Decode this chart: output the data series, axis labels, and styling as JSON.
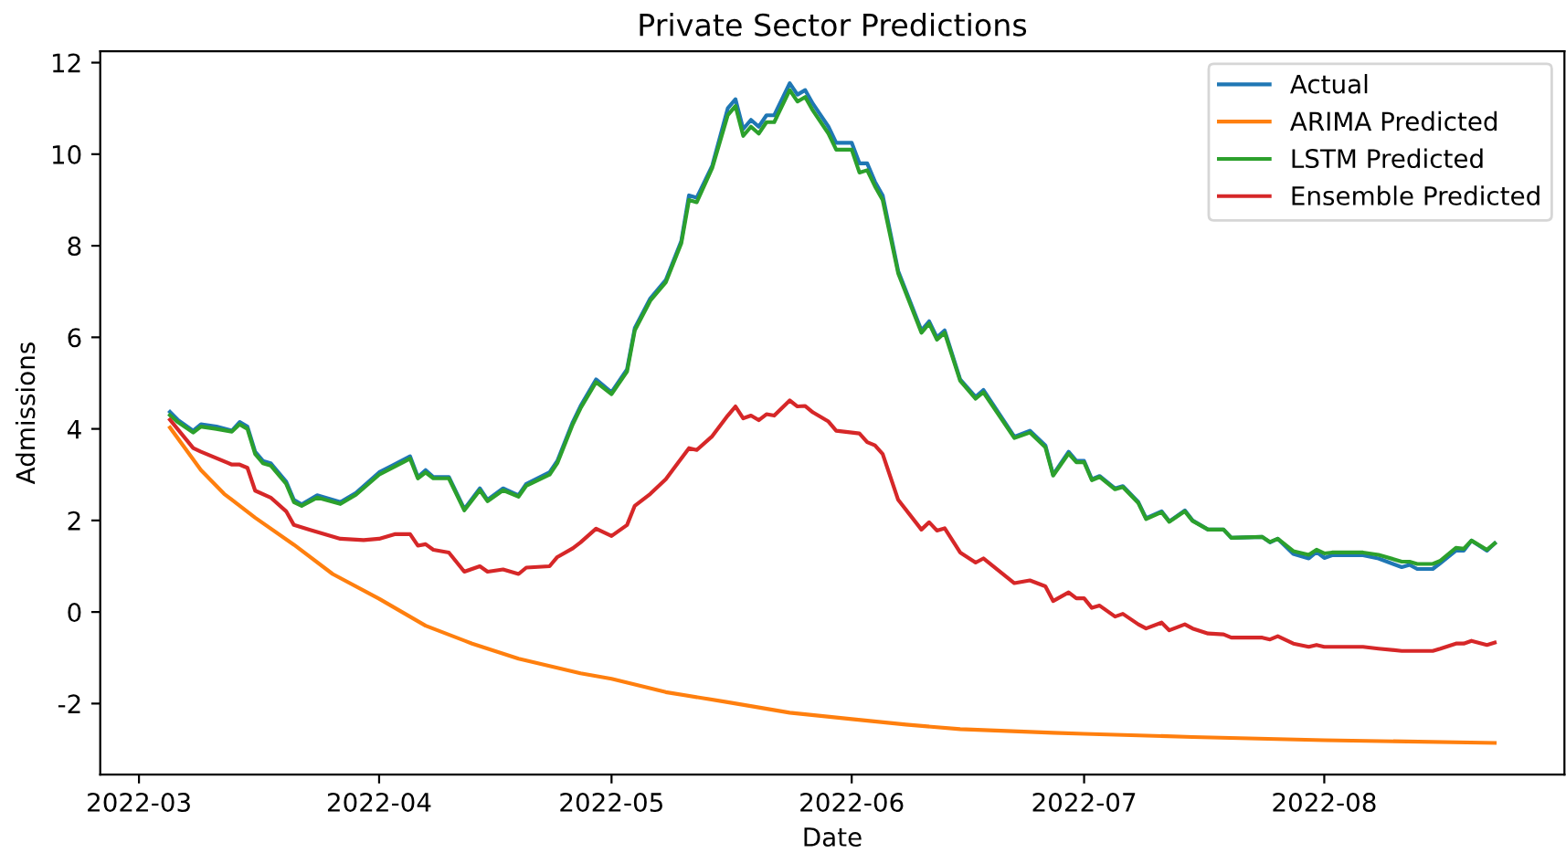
{
  "chart_data": {
    "type": "line",
    "title": "Private Sector Predictions",
    "xlabel": "Date",
    "ylabel": "Admissions",
    "xlim": [
      "2022-02-24",
      "2022-09-01"
    ],
    "ylim": [
      -3.55,
      12.25
    ],
    "xticks": [
      {
        "value": "2022-03-01",
        "label": "2022-03"
      },
      {
        "value": "2022-04-01",
        "label": "2022-04"
      },
      {
        "value": "2022-05-01",
        "label": "2022-05"
      },
      {
        "value": "2022-06-01",
        "label": "2022-06"
      },
      {
        "value": "2022-07-01",
        "label": "2022-07"
      },
      {
        "value": "2022-08-01",
        "label": "2022-08"
      }
    ],
    "yticks": [
      -2,
      0,
      2,
      4,
      6,
      8,
      10,
      12
    ],
    "grid": false,
    "legend": "top right",
    "marker": "none",
    "line_style": "solid",
    "series": [
      {
        "name": "Actual",
        "color": "#1f77b4",
        "x": [
          "2022-03-05",
          "2022-03-06",
          "2022-03-08",
          "2022-03-09",
          "2022-03-11",
          "2022-03-13",
          "2022-03-14",
          "2022-03-15",
          "2022-03-16",
          "2022-03-17",
          "2022-03-18",
          "2022-03-20",
          "2022-03-21",
          "2022-03-22",
          "2022-03-24",
          "2022-03-27",
          "2022-03-29",
          "2022-04-01",
          "2022-04-05",
          "2022-04-06",
          "2022-04-07",
          "2022-04-08",
          "2022-04-10",
          "2022-04-12",
          "2022-04-14",
          "2022-04-15",
          "2022-04-17",
          "2022-04-19",
          "2022-04-20",
          "2022-04-23",
          "2022-04-24",
          "2022-04-26",
          "2022-04-27",
          "2022-04-29",
          "2022-05-01",
          "2022-05-03",
          "2022-05-04",
          "2022-05-06",
          "2022-05-08",
          "2022-05-10",
          "2022-05-11",
          "2022-05-12",
          "2022-05-14",
          "2022-05-16",
          "2022-05-17",
          "2022-05-18",
          "2022-05-19",
          "2022-05-20",
          "2022-05-21",
          "2022-05-22",
          "2022-05-24",
          "2022-05-25",
          "2022-05-26",
          "2022-05-27",
          "2022-05-29",
          "2022-05-30",
          "2022-06-01",
          "2022-06-02",
          "2022-06-03",
          "2022-06-04",
          "2022-06-05",
          "2022-06-07",
          "2022-06-10",
          "2022-06-11",
          "2022-06-12",
          "2022-06-13",
          "2022-06-15",
          "2022-06-17",
          "2022-06-18",
          "2022-06-22",
          "2022-06-24",
          "2022-06-26",
          "2022-06-27",
          "2022-06-29",
          "2022-06-30",
          "2022-07-01",
          "2022-07-02",
          "2022-07-03",
          "2022-07-05",
          "2022-07-06",
          "2022-07-08",
          "2022-07-09",
          "2022-07-11",
          "2022-07-12",
          "2022-07-14",
          "2022-07-15",
          "2022-07-17",
          "2022-07-19",
          "2022-07-20",
          "2022-07-24",
          "2022-07-25",
          "2022-07-26",
          "2022-07-28",
          "2022-07-30",
          "2022-07-31",
          "2022-08-01",
          "2022-08-02",
          "2022-08-06",
          "2022-08-08",
          "2022-08-11",
          "2022-08-12",
          "2022-08-13",
          "2022-08-15",
          "2022-08-16",
          "2022-08-18",
          "2022-08-19",
          "2022-08-20",
          "2022-08-22",
          "2022-08-23"
        ],
        "values": [
          4.37,
          4.2,
          3.96,
          4.1,
          4.05,
          3.96,
          4.15,
          4.05,
          3.5,
          3.3,
          3.25,
          2.85,
          2.45,
          2.35,
          2.55,
          2.4,
          2.6,
          3.05,
          3.4,
          2.95,
          3.1,
          2.95,
          2.95,
          2.25,
          2.7,
          2.45,
          2.7,
          2.55,
          2.8,
          3.05,
          3.3,
          4.15,
          4.5,
          5.08,
          4.8,
          5.3,
          6.2,
          6.85,
          7.25,
          8.1,
          9.1,
          9.05,
          9.75,
          11.0,
          11.2,
          10.55,
          10.75,
          10.6,
          10.85,
          10.85,
          11.55,
          11.3,
          11.4,
          11.1,
          10.6,
          10.25,
          10.25,
          9.8,
          9.8,
          9.4,
          9.1,
          7.45,
          6.15,
          6.35,
          6.0,
          6.15,
          5.08,
          4.7,
          4.85,
          3.83,
          3.96,
          3.64,
          3.0,
          3.5,
          3.3,
          3.3,
          2.9,
          2.97,
          2.7,
          2.75,
          2.4,
          2.05,
          2.2,
          1.98,
          2.22,
          2.0,
          1.8,
          1.8,
          1.62,
          1.64,
          1.52,
          1.6,
          1.27,
          1.17,
          1.31,
          1.18,
          1.24,
          1.24,
          1.17,
          0.98,
          1.03,
          0.94,
          0.94,
          1.07,
          1.34,
          1.34,
          1.56,
          1.34,
          1.5
        ]
      },
      {
        "name": "ARIMA Predicted",
        "color": "#ff7f0e",
        "x": [
          "2022-03-05",
          "2022-03-09",
          "2022-03-12",
          "2022-03-16",
          "2022-03-21",
          "2022-03-26",
          "2022-04-01",
          "2022-04-07",
          "2022-04-13",
          "2022-04-19",
          "2022-04-27",
          "2022-05-01",
          "2022-05-08",
          "2022-05-16",
          "2022-05-24",
          "2022-06-01",
          "2022-06-08",
          "2022-06-15",
          "2022-06-27",
          "2022-07-01",
          "2022-07-15",
          "2022-08-01",
          "2022-08-23"
        ],
        "values": [
          4.03,
          3.1,
          2.58,
          2.06,
          1.47,
          0.83,
          0.29,
          -0.3,
          -0.69,
          -1.02,
          -1.34,
          -1.46,
          -1.75,
          -1.97,
          -2.2,
          -2.34,
          -2.46,
          -2.56,
          -2.64,
          -2.66,
          -2.73,
          -2.8,
          -2.86
        ]
      },
      {
        "name": "LSTM Predicted",
        "color": "#2ca02c",
        "x": [
          "2022-03-05",
          "2022-03-06",
          "2022-03-08",
          "2022-03-09",
          "2022-03-11",
          "2022-03-13",
          "2022-03-14",
          "2022-03-15",
          "2022-03-16",
          "2022-03-17",
          "2022-03-18",
          "2022-03-20",
          "2022-03-21",
          "2022-03-22",
          "2022-03-24",
          "2022-03-27",
          "2022-03-29",
          "2022-04-01",
          "2022-04-05",
          "2022-04-06",
          "2022-04-07",
          "2022-04-08",
          "2022-04-10",
          "2022-04-12",
          "2022-04-14",
          "2022-04-15",
          "2022-04-17",
          "2022-04-19",
          "2022-04-20",
          "2022-04-23",
          "2022-04-24",
          "2022-04-26",
          "2022-04-27",
          "2022-04-29",
          "2022-05-01",
          "2022-05-03",
          "2022-05-04",
          "2022-05-06",
          "2022-05-08",
          "2022-05-10",
          "2022-05-11",
          "2022-05-12",
          "2022-05-14",
          "2022-05-16",
          "2022-05-17",
          "2022-05-18",
          "2022-05-19",
          "2022-05-20",
          "2022-05-21",
          "2022-05-22",
          "2022-05-24",
          "2022-05-25",
          "2022-05-26",
          "2022-05-27",
          "2022-05-29",
          "2022-05-30",
          "2022-06-01",
          "2022-06-02",
          "2022-06-03",
          "2022-06-04",
          "2022-06-05",
          "2022-06-07",
          "2022-06-10",
          "2022-06-11",
          "2022-06-12",
          "2022-06-13",
          "2022-06-15",
          "2022-06-17",
          "2022-06-18",
          "2022-06-22",
          "2022-06-24",
          "2022-06-26",
          "2022-06-27",
          "2022-06-29",
          "2022-06-30",
          "2022-07-01",
          "2022-07-02",
          "2022-07-03",
          "2022-07-05",
          "2022-07-06",
          "2022-07-08",
          "2022-07-09",
          "2022-07-11",
          "2022-07-12",
          "2022-07-14",
          "2022-07-15",
          "2022-07-17",
          "2022-07-19",
          "2022-07-20",
          "2022-07-24",
          "2022-07-25",
          "2022-07-26",
          "2022-07-28",
          "2022-07-30",
          "2022-07-31",
          "2022-08-01",
          "2022-08-02",
          "2022-08-06",
          "2022-08-08",
          "2022-08-11",
          "2022-08-12",
          "2022-08-13",
          "2022-08-15",
          "2022-08-16",
          "2022-08-18",
          "2022-08-19",
          "2022-08-20",
          "2022-08-22",
          "2022-08-23"
        ],
        "values": [
          4.3,
          4.15,
          3.92,
          4.05,
          4.0,
          3.94,
          4.1,
          4.0,
          3.45,
          3.25,
          3.2,
          2.8,
          2.4,
          2.32,
          2.5,
          2.36,
          2.56,
          3.0,
          3.35,
          2.92,
          3.05,
          2.92,
          2.92,
          2.22,
          2.66,
          2.42,
          2.66,
          2.52,
          2.76,
          3.0,
          3.25,
          4.1,
          4.45,
          5.02,
          4.76,
          5.25,
          6.15,
          6.8,
          7.2,
          8.05,
          9.0,
          8.95,
          9.7,
          10.85,
          11.05,
          10.4,
          10.6,
          10.45,
          10.7,
          10.7,
          11.4,
          11.15,
          11.25,
          10.95,
          10.45,
          10.1,
          10.1,
          9.6,
          9.65,
          9.3,
          9.0,
          7.4,
          6.1,
          6.3,
          5.95,
          6.1,
          5.05,
          4.66,
          4.8,
          3.8,
          3.92,
          3.6,
          2.98,
          3.46,
          3.27,
          3.27,
          2.88,
          2.95,
          2.68,
          2.73,
          2.38,
          2.03,
          2.18,
          1.97,
          2.2,
          1.99,
          1.8,
          1.8,
          1.62,
          1.64,
          1.53,
          1.6,
          1.33,
          1.25,
          1.36,
          1.28,
          1.3,
          1.3,
          1.25,
          1.1,
          1.1,
          1.05,
          1.05,
          1.12,
          1.4,
          1.38,
          1.56,
          1.36,
          1.5
        ]
      },
      {
        "name": "Ensemble Predicted",
        "color": "#d62728",
        "x": [
          "2022-03-05",
          "2022-03-08",
          "2022-03-09",
          "2022-03-13",
          "2022-03-14",
          "2022-03-15",
          "2022-03-16",
          "2022-03-18",
          "2022-03-20",
          "2022-03-21",
          "2022-03-23",
          "2022-03-27",
          "2022-03-30",
          "2022-04-01",
          "2022-04-03",
          "2022-04-05",
          "2022-04-06",
          "2022-04-07",
          "2022-04-08",
          "2022-04-10",
          "2022-04-12",
          "2022-04-14",
          "2022-04-15",
          "2022-04-17",
          "2022-04-19",
          "2022-04-20",
          "2022-04-23",
          "2022-04-24",
          "2022-04-26",
          "2022-04-27",
          "2022-04-29",
          "2022-05-01",
          "2022-05-03",
          "2022-05-04",
          "2022-05-06",
          "2022-05-08",
          "2022-05-11",
          "2022-05-12",
          "2022-05-14",
          "2022-05-16",
          "2022-05-17",
          "2022-05-18",
          "2022-05-19",
          "2022-05-20",
          "2022-05-21",
          "2022-05-22",
          "2022-05-24",
          "2022-05-25",
          "2022-05-26",
          "2022-05-27",
          "2022-05-29",
          "2022-05-30",
          "2022-06-02",
          "2022-06-03",
          "2022-06-04",
          "2022-06-05",
          "2022-06-07",
          "2022-06-10",
          "2022-06-11",
          "2022-06-12",
          "2022-06-13",
          "2022-06-15",
          "2022-06-17",
          "2022-06-18",
          "2022-06-22",
          "2022-06-24",
          "2022-06-26",
          "2022-06-27",
          "2022-06-29",
          "2022-06-30",
          "2022-07-01",
          "2022-07-02",
          "2022-07-03",
          "2022-07-05",
          "2022-07-06",
          "2022-07-08",
          "2022-07-09",
          "2022-07-11",
          "2022-07-12",
          "2022-07-14",
          "2022-07-15",
          "2022-07-17",
          "2022-07-19",
          "2022-07-20",
          "2022-07-24",
          "2022-07-25",
          "2022-07-26",
          "2022-07-28",
          "2022-07-30",
          "2022-07-31",
          "2022-08-01",
          "2022-08-06",
          "2022-08-08",
          "2022-08-11",
          "2022-08-15",
          "2022-08-16",
          "2022-08-18",
          "2022-08-19",
          "2022-08-20",
          "2022-08-22",
          "2022-08-23"
        ],
        "values": [
          4.2,
          3.58,
          3.5,
          3.22,
          3.22,
          3.15,
          2.65,
          2.5,
          2.2,
          1.9,
          1.8,
          1.6,
          1.57,
          1.6,
          1.7,
          1.7,
          1.45,
          1.48,
          1.36,
          1.3,
          0.88,
          1.0,
          0.88,
          0.93,
          0.83,
          0.97,
          1.0,
          1.2,
          1.39,
          1.52,
          1.82,
          1.66,
          1.9,
          2.32,
          2.58,
          2.9,
          3.58,
          3.54,
          3.84,
          4.29,
          4.49,
          4.23,
          4.29,
          4.19,
          4.32,
          4.29,
          4.62,
          4.49,
          4.5,
          4.36,
          4.16,
          3.96,
          3.9,
          3.71,
          3.64,
          3.45,
          2.45,
          1.8,
          1.96,
          1.78,
          1.83,
          1.3,
          1.08,
          1.17,
          0.63,
          0.69,
          0.56,
          0.24,
          0.43,
          0.3,
          0.3,
          0.09,
          0.14,
          -0.1,
          -0.04,
          -0.27,
          -0.36,
          -0.23,
          -0.4,
          -0.27,
          -0.36,
          -0.47,
          -0.49,
          -0.56,
          -0.56,
          -0.6,
          -0.53,
          -0.69,
          -0.76,
          -0.72,
          -0.76,
          -0.76,
          -0.8,
          -0.85,
          -0.85,
          -0.8,
          -0.69,
          -0.69,
          -0.63,
          -0.72,
          -0.67
        ]
      }
    ]
  }
}
